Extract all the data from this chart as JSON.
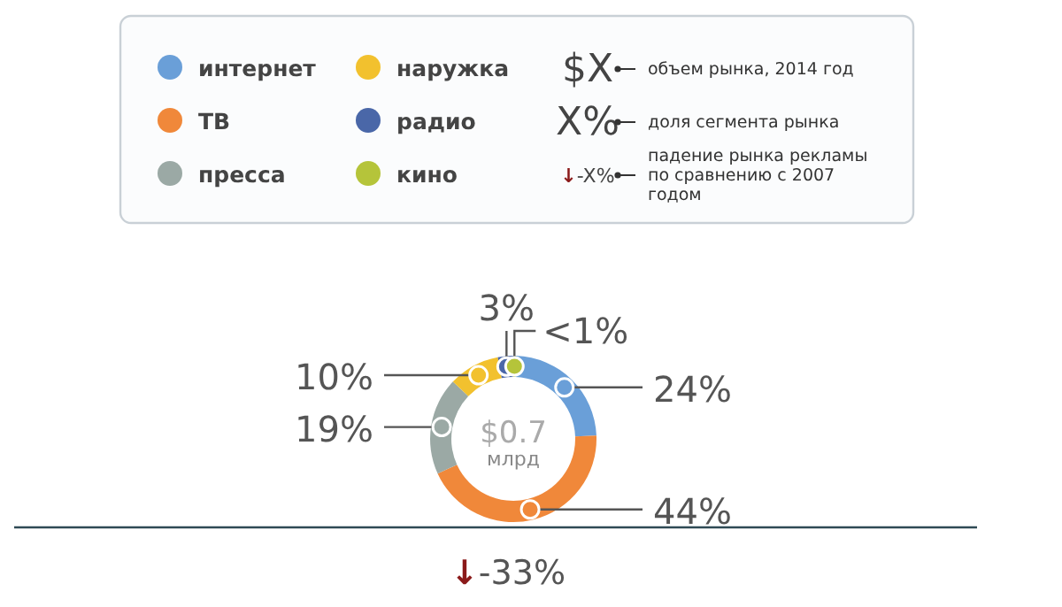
{
  "chart_data": {
    "type": "donut",
    "categories": [
      "интернет",
      "ТВ",
      "пресса",
      "наружка",
      "радио",
      "кино"
    ],
    "values": [
      24,
      44,
      19,
      10,
      3,
      0.5
    ],
    "value_labels": [
      "24%",
      "44%",
      "19%",
      "10%",
      "3%",
      "<1%"
    ],
    "colors": [
      "#6a9fd8",
      "#f0883a",
      "#9ba9a5",
      "#f2c12e",
      "#4a67a8",
      "#b5c43a"
    ],
    "legend": "top left",
    "annotations": [
      "$X",
      "объем рынка, 2014 год",
      "X%",
      "доля сегмента рынка",
      "↓-X%",
      "падение рынка рекламы по сравнению с 2007 годом",
      "$0.7",
      "млрд",
      "↓-33%"
    ]
  }
}
